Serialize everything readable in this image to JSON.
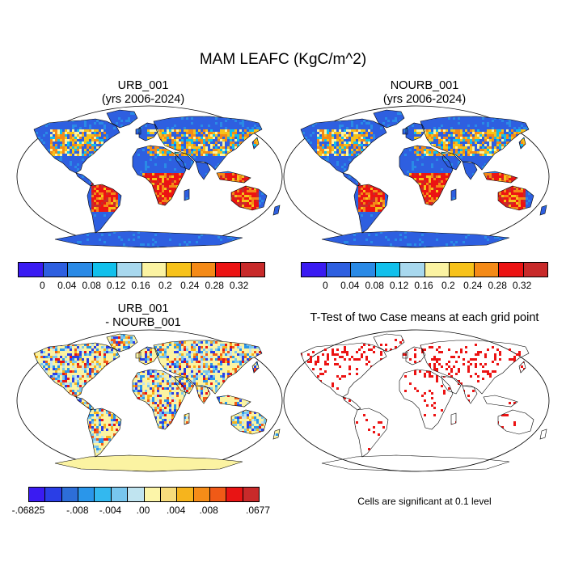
{
  "title": "MAM LEAFC (KgC/m^2)",
  "panels": {
    "urb": {
      "title_line1": "URB_001",
      "title_line2": "(yrs 2006-2024)"
    },
    "nourb": {
      "title_line1": "NOURB_001",
      "title_line2": "(yrs 2006-2024)"
    },
    "diff": {
      "title_line1": "URB_001",
      "title_line2": "- NOURB_001"
    },
    "ttest": {
      "title": "T-Test of two Case means at each grid point",
      "note": "Cells are significant at 0.1 level"
    }
  },
  "colorbar_main": {
    "colors": [
      "#3a1bf2",
      "#2e5fe0",
      "#2a8ae6",
      "#11c0ec",
      "#a8d8ee",
      "#fbf3a2",
      "#f7c21a",
      "#f48a17",
      "#ec1313",
      "#c82a2a"
    ],
    "labels": [
      "0",
      "0.04",
      "0.08",
      "0.12",
      "0.16",
      "0.2",
      "0.24",
      "0.28",
      "0.32"
    ]
  },
  "colorbar_diff": {
    "colors": [
      "#3a1bf2",
      "#2a3ee6",
      "#2d6ed8",
      "#2a96ea",
      "#33b8ef",
      "#78c6ee",
      "#c0e4f0",
      "#fcf5a9",
      "#f7dc7c",
      "#f6b41d",
      "#f58c18",
      "#f05a17",
      "#e81414",
      "#c82a2a"
    ],
    "labels": [
      "-.06825",
      "-.008",
      "-.004",
      ".00",
      ".004",
      ".008",
      ".0677"
    ]
  },
  "map_colors": {
    "ocean": "#ffffff",
    "land_base_abs": "#2e5fe0",
    "land_base_diff": "#fbf3a2",
    "significant": "#ec1313",
    "coast": "#000000"
  }
}
